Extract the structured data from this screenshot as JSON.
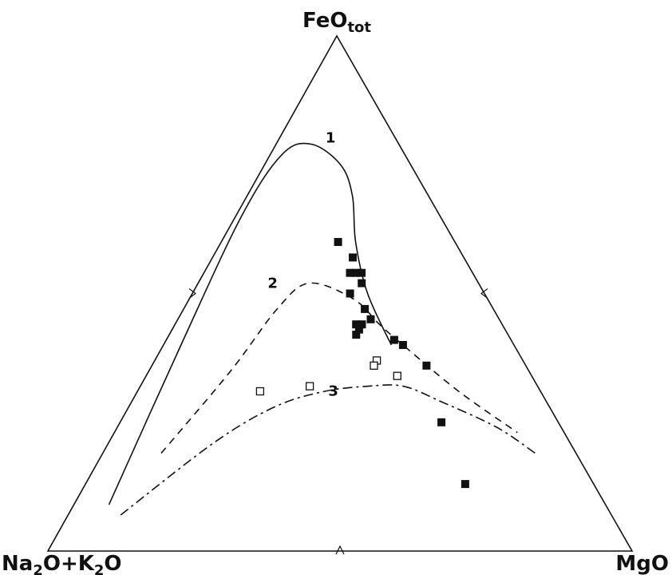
{
  "chart_data": {
    "type": "scatter",
    "title": "",
    "diagram": "ternary",
    "vertices": {
      "top": {
        "main": "FeO",
        "sub": "tot"
      },
      "left": {
        "parts": [
          {
            "t": "Na",
            "s": false
          },
          {
            "t": "2",
            "s": true
          },
          {
            "t": "O+K",
            "s": false
          },
          {
            "t": "2",
            "s": true
          },
          {
            "t": "O",
            "s": false
          }
        ]
      },
      "right": {
        "parts": [
          {
            "t": "MgO",
            "s": false
          }
        ]
      }
    },
    "series": [
      {
        "marker": "filled-square",
        "points": [
          {
            "F": 0.6,
            "A": 0.2,
            "M": 0.2
          },
          {
            "F": 0.57,
            "A": 0.19,
            "M": 0.24
          },
          {
            "F": 0.54,
            "A": 0.21,
            "M": 0.25
          },
          {
            "F": 0.54,
            "A": 0.2,
            "M": 0.26
          },
          {
            "F": 0.54,
            "A": 0.19,
            "M": 0.27
          },
          {
            "F": 0.52,
            "A": 0.2,
            "M": 0.28
          },
          {
            "F": 0.5,
            "A": 0.23,
            "M": 0.27
          },
          {
            "F": 0.47,
            "A": 0.22,
            "M": 0.31
          },
          {
            "F": 0.45,
            "A": 0.22,
            "M": 0.33
          },
          {
            "F": 0.44,
            "A": 0.25,
            "M": 0.31
          },
          {
            "F": 0.44,
            "A": 0.24,
            "M": 0.32
          },
          {
            "F": 0.43,
            "A": 0.25,
            "M": 0.32
          },
          {
            "F": 0.42,
            "A": 0.26,
            "M": 0.32
          },
          {
            "F": 0.41,
            "A": 0.2,
            "M": 0.39
          },
          {
            "F": 0.4,
            "A": 0.19,
            "M": 0.41
          },
          {
            "F": 0.36,
            "A": 0.17,
            "M": 0.47
          },
          {
            "F": 0.25,
            "A": 0.2,
            "M": 0.55
          },
          {
            "F": 0.13,
            "A": 0.22,
            "M": 0.65
          }
        ]
      },
      {
        "marker": "open-square",
        "points": [
          {
            "F": 0.37,
            "A": 0.25,
            "M": 0.38
          },
          {
            "F": 0.36,
            "A": 0.26,
            "M": 0.38
          },
          {
            "F": 0.34,
            "A": 0.23,
            "M": 0.43
          },
          {
            "F": 0.32,
            "A": 0.39,
            "M": 0.29
          },
          {
            "F": 0.31,
            "A": 0.48,
            "M": 0.21
          }
        ]
      }
    ],
    "curves": [
      {
        "label": "1",
        "style": "solid",
        "points": [
          {
            "F": 0.09,
            "A": 0.85,
            "M": 0.06
          },
          {
            "F": 0.4,
            "A": 0.57,
            "M": 0.03
          },
          {
            "F": 0.65,
            "A": 0.34,
            "M": 0.01
          },
          {
            "F": 0.77,
            "A": 0.21,
            "M": 0.02
          },
          {
            "F": 0.79,
            "A": 0.15,
            "M": 0.06
          },
          {
            "F": 0.75,
            "A": 0.12,
            "M": 0.13
          },
          {
            "F": 0.69,
            "A": 0.13,
            "M": 0.18
          },
          {
            "F": 0.6,
            "A": 0.17,
            "M": 0.23
          },
          {
            "F": 0.5,
            "A": 0.2,
            "M": 0.3
          },
          {
            "F": 0.4,
            "A": 0.21,
            "M": 0.39
          }
        ]
      },
      {
        "label": "2",
        "style": "dashed",
        "points": [
          {
            "F": 0.19,
            "A": 0.71,
            "M": 0.1
          },
          {
            "F": 0.35,
            "A": 0.51,
            "M": 0.14
          },
          {
            "F": 0.47,
            "A": 0.37,
            "M": 0.16
          },
          {
            "F": 0.52,
            "A": 0.29,
            "M": 0.19
          },
          {
            "F": 0.49,
            "A": 0.23,
            "M": 0.28
          },
          {
            "F": 0.44,
            "A": 0.21,
            "M": 0.35
          },
          {
            "F": 0.4,
            "A": 0.19,
            "M": 0.41
          },
          {
            "F": 0.31,
            "A": 0.14,
            "M": 0.55
          },
          {
            "F": 0.23,
            "A": 0.08,
            "M": 0.69
          }
        ]
      },
      {
        "label": "3",
        "style": "dashdot",
        "points": [
          {
            "F": 0.07,
            "A": 0.84,
            "M": 0.09
          },
          {
            "F": 0.21,
            "A": 0.61,
            "M": 0.18
          },
          {
            "F": 0.28,
            "A": 0.47,
            "M": 0.25
          },
          {
            "F": 0.31,
            "A": 0.37,
            "M": 0.32
          },
          {
            "F": 0.32,
            "A": 0.29,
            "M": 0.39
          },
          {
            "F": 0.32,
            "A": 0.23,
            "M": 0.45
          },
          {
            "F": 0.29,
            "A": 0.18,
            "M": 0.53
          },
          {
            "F": 0.24,
            "A": 0.11,
            "M": 0.65
          },
          {
            "F": 0.19,
            "A": 0.07,
            "M": 0.74
          }
        ]
      }
    ],
    "grid": false,
    "legend": "none"
  }
}
